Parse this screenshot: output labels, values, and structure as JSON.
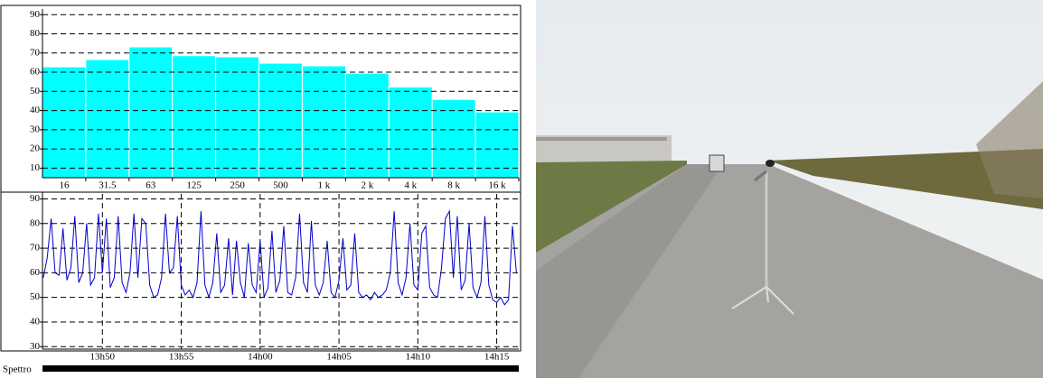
{
  "chart_data": [
    {
      "type": "bar",
      "categories": [
        "16",
        "31.5",
        "63",
        "125",
        "250",
        "500",
        "1 k",
        "2 k",
        "4 k",
        "8 k",
        "16 k"
      ],
      "values": [
        62.8,
        66.6,
        73.2,
        68.6,
        68,
        64.7,
        63.3,
        59.5,
        52.3,
        45.8,
        39.3
      ],
      "color": "#00ffff",
      "ylim": [
        5,
        92
      ],
      "yticks": [
        10,
        20,
        30,
        40,
        50,
        60,
        70,
        80,
        90
      ],
      "grid": true
    },
    {
      "type": "line",
      "x": [
        826.25,
        826.5,
        826.75,
        827,
        827.25,
        827.5,
        827.75,
        828,
        828.25,
        828.5,
        828.75,
        829,
        829.25,
        829.5,
        829.75,
        830,
        830.25,
        830.5,
        830.75,
        831,
        831.25,
        831.5,
        831.75,
        832,
        832.25,
        832.5,
        832.75,
        833,
        833.25,
        833.5,
        833.75,
        834,
        834.25,
        834.5,
        834.75,
        835,
        835.25,
        835.5,
        835.75,
        836,
        836.25,
        836.5,
        836.75,
        837,
        837.25,
        837.5,
        837.75,
        838,
        838.25,
        838.5,
        838.75,
        839,
        839.25,
        839.5,
        839.75,
        840,
        840.25,
        840.5,
        840.75,
        841,
        841.25,
        841.5,
        841.75,
        842,
        842.25,
        842.5,
        842.75,
        843,
        843.25,
        843.5,
        843.75,
        844,
        844.25,
        844.5,
        844.75,
        845,
        845.25,
        845.5,
        845.75,
        846,
        846.25,
        846.5,
        846.75,
        847,
        847.25,
        847.5,
        847.75,
        848,
        848.25,
        848.5,
        848.75,
        849,
        849.25,
        849.5,
        849.75,
        850,
        850.25,
        850.5,
        850.75,
        851,
        851.25,
        851.5,
        851.75,
        852,
        852.25,
        852.5,
        852.75,
        853,
        853.25,
        853.5,
        853.75,
        854,
        854.25,
        854.5,
        854.75,
        855,
        855.25,
        855.5,
        855.75,
        856,
        856.25
      ],
      "values": [
        58,
        66,
        82,
        60,
        59,
        78,
        57,
        62,
        83,
        56,
        60,
        80,
        55,
        58,
        84,
        60,
        82,
        54,
        58,
        83,
        56,
        52,
        60,
        84,
        58,
        82,
        80,
        55,
        50,
        51,
        58,
        84,
        60,
        62,
        83,
        55,
        51,
        53,
        50,
        56,
        85,
        55,
        50,
        56,
        76,
        52,
        55,
        74,
        51,
        73,
        56,
        50,
        72,
        55,
        52,
        73,
        50,
        54,
        77,
        52,
        57,
        79,
        52,
        51,
        58,
        84,
        56,
        52,
        81,
        55,
        51,
        56,
        73,
        52,
        50,
        57,
        74,
        53,
        55,
        76,
        52,
        50,
        51,
        49,
        52,
        50,
        51,
        53,
        60,
        85,
        56,
        51,
        58,
        80,
        55,
        53,
        76,
        79,
        54,
        51,
        50,
        62,
        82,
        85,
        58,
        83,
        53,
        57,
        80,
        54,
        50,
        56,
        83,
        55,
        49,
        48,
        50,
        47,
        49,
        79,
        60
      ],
      "color": "#0000cc",
      "xlim": [
        826.2,
        856.4
      ],
      "xticks": [
        {
          "value": 830,
          "label": "13h50"
        },
        {
          "value": 835,
          "label": "13h55"
        },
        {
          "value": 840,
          "label": "14h00"
        },
        {
          "value": 845,
          "label": "14h05"
        },
        {
          "value": 850,
          "label": "14h10"
        },
        {
          "value": 855,
          "label": "14h15"
        }
      ],
      "ylim": [
        29,
        92
      ],
      "yticks": [
        30,
        40,
        50,
        60,
        70,
        80,
        90
      ],
      "grid": true
    }
  ],
  "status_bar": {
    "label": "Spettro"
  }
}
